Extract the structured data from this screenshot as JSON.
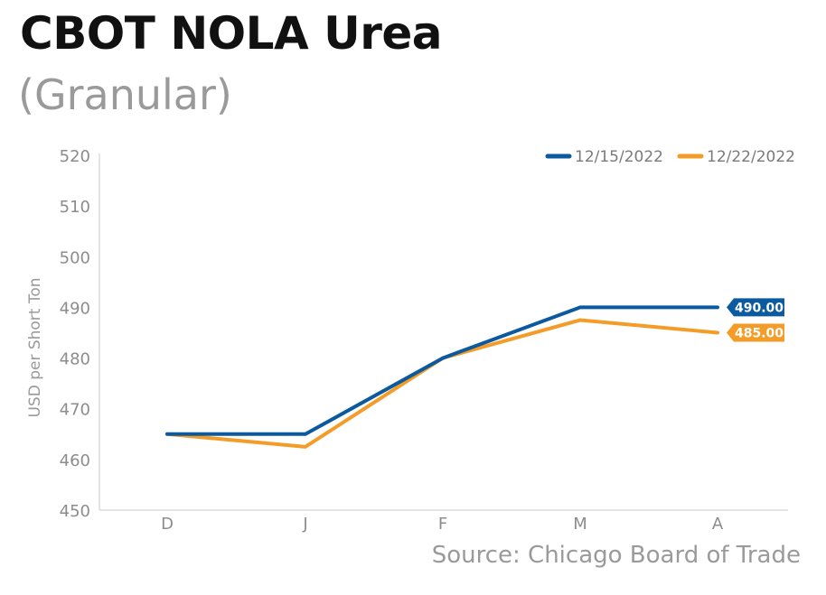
{
  "chart_data": {
    "type": "line",
    "title": "CBOT NOLA Urea",
    "subtitle": "(Granular)",
    "ylabel": "USD per Short Ton",
    "xlabel": "",
    "categories": [
      "D",
      "J",
      "F",
      "M",
      "A"
    ],
    "ylim": [
      450,
      520
    ],
    "yticks": [
      450,
      460,
      470,
      480,
      490,
      500,
      510,
      520
    ],
    "grid": false,
    "legend_position": "top-right",
    "series": [
      {
        "name": "12/15/2022",
        "color": "#0b5aa0",
        "values": [
          465,
          465,
          480,
          490,
          490
        ],
        "end_label": "490.00"
      },
      {
        "name": "12/22/2022",
        "color": "#f39c28",
        "values": [
          465,
          462.5,
          480,
          487.5,
          485
        ],
        "end_label": "485.00"
      }
    ],
    "source": "Source: Chicago Board of Trade"
  }
}
